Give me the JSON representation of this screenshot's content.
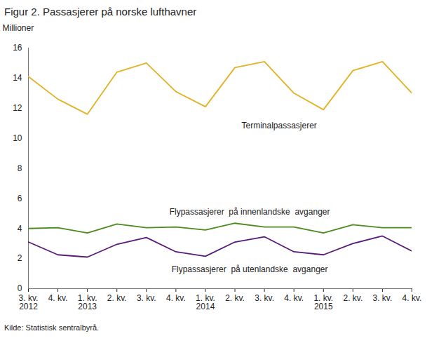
{
  "chart_data": {
    "type": "line",
    "title": "Figur 2. Passasjerer på norske lufthavner",
    "y_label": "Millioner",
    "caption": "Kilde: Statistisk sentralbyrå.",
    "categories": [
      "3. kv.\n2012",
      "4. kv.",
      "1. kv.\n2013",
      "2. kv.",
      "3. kv.",
      "4. kv.",
      "1. kv.\n2014",
      "2. kv.",
      "3. kv.",
      "4. kv.",
      "1. kv.\n2015",
      "2. kv.",
      "3. kv.",
      "4. kv."
    ],
    "series": [
      {
        "name": "Terminalpassasjerer",
        "color": "#e3b124",
        "values": [
          14.1,
          12.6,
          11.6,
          14.4,
          15.0,
          13.1,
          12.1,
          14.7,
          15.1,
          13.0,
          11.9,
          14.5,
          15.1,
          13.0
        ]
      },
      {
        "name": "Flypassasjerer  på innenlandske  avganger",
        "color": "#4b8a1c",
        "values": [
          4.0,
          4.05,
          3.7,
          4.3,
          4.05,
          4.1,
          3.9,
          4.35,
          4.1,
          4.1,
          3.7,
          4.25,
          4.05,
          4.05
        ]
      },
      {
        "name": "Flypassasjerer  på utenlandske  avganger",
        "color": "#5a1b78",
        "values": [
          3.1,
          2.25,
          2.1,
          2.95,
          3.4,
          2.45,
          2.15,
          3.1,
          3.45,
          2.45,
          2.25,
          3.0,
          3.5,
          2.5
        ]
      }
    ],
    "ylim": [
      0,
      16
    ],
    "yticks": [
      0,
      2,
      4,
      6,
      8,
      10,
      12,
      14,
      16
    ],
    "grid": false
  }
}
